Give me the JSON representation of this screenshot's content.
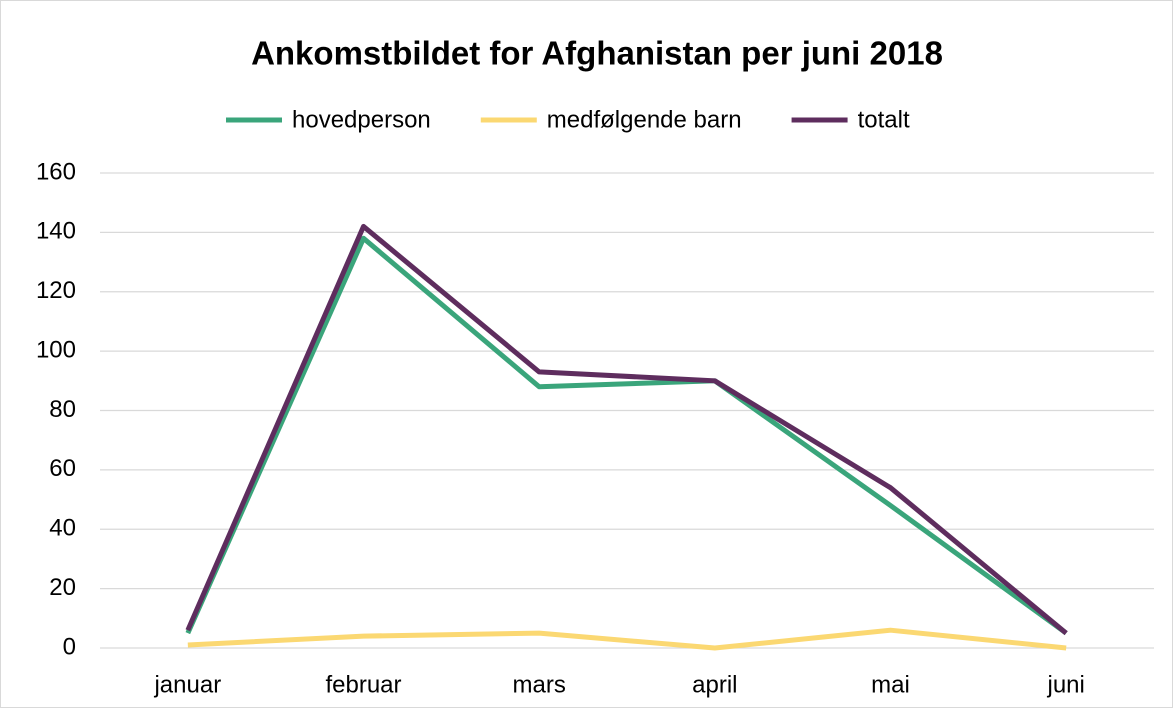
{
  "chart_data": {
    "type": "line",
    "title": "Ankomstbildet for Afghanistan per juni 2018",
    "categories": [
      "januar",
      "februar",
      "mars",
      "april",
      "mai",
      "juni"
    ],
    "series": [
      {
        "name": "hovedperson",
        "color": "#3aa57b",
        "values": [
          5,
          138,
          88,
          90,
          48,
          5
        ]
      },
      {
        "name": "medfølgende barn",
        "color": "#fbd872",
        "values": [
          1,
          4,
          5,
          0,
          6,
          0
        ]
      },
      {
        "name": "totalt",
        "color": "#5e2d5e",
        "values": [
          6,
          142,
          93,
          90,
          54,
          5
        ]
      }
    ],
    "ylim": [
      0,
      160
    ],
    "yticks": [
      0,
      20,
      40,
      60,
      80,
      100,
      120,
      140,
      160
    ],
    "grid": true,
    "legend": "top"
  }
}
